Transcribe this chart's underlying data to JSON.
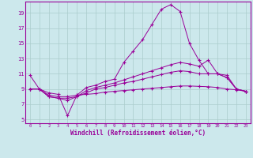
{
  "x": [
    0,
    1,
    2,
    3,
    4,
    5,
    6,
    7,
    8,
    9,
    10,
    11,
    12,
    13,
    14,
    15,
    16,
    17,
    18,
    19,
    20,
    21,
    22,
    23
  ],
  "line1": [
    10.8,
    9.0,
    8.5,
    8.3,
    5.5,
    8.2,
    9.2,
    9.5,
    10.0,
    10.3,
    12.5,
    14.0,
    15.5,
    17.5,
    19.5,
    20.1,
    19.2,
    15.0,
    12.8,
    11.0,
    11.0,
    10.8,
    9.0,
    8.7
  ],
  "line2": [
    9.0,
    9.0,
    8.0,
    7.8,
    7.8,
    8.0,
    8.8,
    9.2,
    9.5,
    9.8,
    10.2,
    10.6,
    11.0,
    11.4,
    11.8,
    12.2,
    12.5,
    12.3,
    12.0,
    12.8,
    11.0,
    10.5,
    9.0,
    8.7
  ],
  "line3": [
    9.0,
    9.0,
    8.0,
    7.8,
    7.5,
    8.0,
    8.5,
    9.0,
    9.2,
    9.5,
    9.8,
    10.0,
    10.3,
    10.6,
    10.9,
    11.2,
    11.4,
    11.3,
    11.0,
    11.0,
    11.0,
    10.5,
    9.0,
    8.7
  ],
  "line4": [
    9.0,
    9.0,
    8.2,
    8.0,
    8.0,
    8.2,
    8.3,
    8.4,
    8.6,
    8.7,
    8.8,
    8.9,
    9.0,
    9.1,
    9.2,
    9.3,
    9.4,
    9.4,
    9.35,
    9.3,
    9.2,
    9.0,
    8.9,
    8.7
  ],
  "line_color": "#990099",
  "bg_color": "#cce8ec",
  "grid_color": "#aacccc",
  "ylabel_ticks": [
    5,
    7,
    9,
    11,
    13,
    15,
    17,
    19
  ],
  "xtick_labels": [
    "0",
    "1",
    "2",
    "3",
    "4",
    "5",
    "6",
    "7",
    "8",
    "9",
    "10",
    "11",
    "12",
    "13",
    "14",
    "15",
    "16",
    "17",
    "18",
    "19",
    "20",
    "21",
    "22",
    "23"
  ],
  "xlabel": "Windchill (Refroidissement éolien,°C)",
  "xlim": [
    -0.5,
    23.5
  ],
  "ylim": [
    4.5,
    20.5
  ]
}
